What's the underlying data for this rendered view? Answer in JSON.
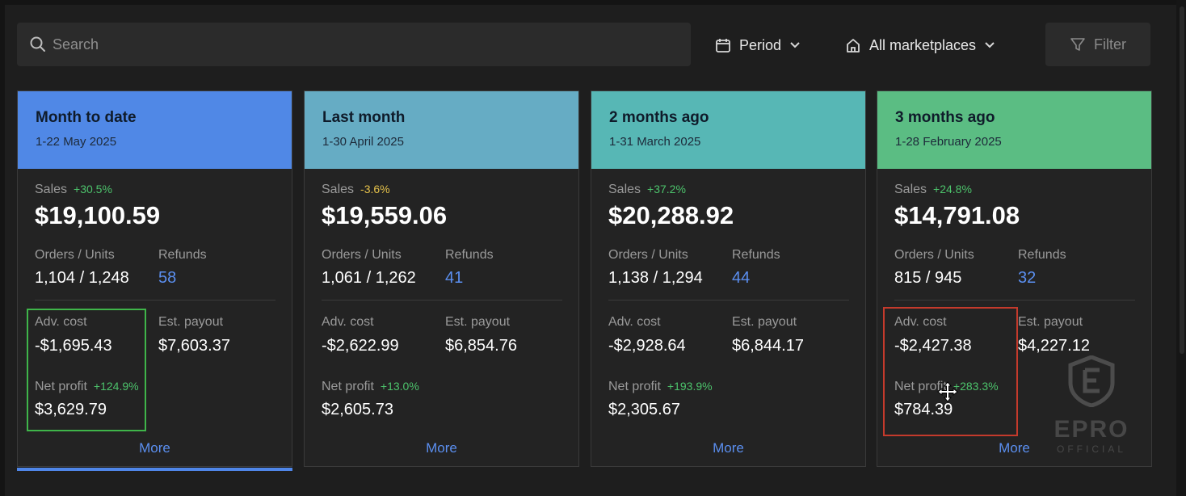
{
  "search": {
    "placeholder": "Search"
  },
  "toolbar": {
    "period_label": "Period",
    "marketplace_label": "All marketplaces",
    "filter_label": "Filter"
  },
  "colors": {
    "card0_header": "#5088e6",
    "card1_header": "#66acc4",
    "card2_header": "#57b7b5",
    "card3_header": "#5bbd83",
    "positive": "#4cc26b",
    "negative": "#e3c04a",
    "link": "#5b8ff0"
  },
  "cards": [
    {
      "title": "Month to date",
      "range": "1-22 May 2025",
      "sales_label": "Sales",
      "sales_change": "+30.5%",
      "sales": "$19,100.59",
      "orders_label": "Orders / Units",
      "orders_units": "1,104 / 1,248",
      "refunds_label": "Refunds",
      "refunds": "58",
      "adv_label": "Adv. cost",
      "adv_cost": "-$1,695.43",
      "payout_label": "Est. payout",
      "payout": "$7,603.37",
      "net_label": "Net profit",
      "net_change": "+124.9%",
      "net_profit": "$3,629.79",
      "more": "More"
    },
    {
      "title": "Last month",
      "range": "1-30 April 2025",
      "sales_label": "Sales",
      "sales_change": "-3.6%",
      "sales": "$19,559.06",
      "orders_label": "Orders / Units",
      "orders_units": "1,061 / 1,262",
      "refunds_label": "Refunds",
      "refunds": "41",
      "adv_label": "Adv. cost",
      "adv_cost": "-$2,622.99",
      "payout_label": "Est. payout",
      "payout": "$6,854.76",
      "net_label": "Net profit",
      "net_change": "+13.0%",
      "net_profit": "$2,605.73",
      "more": "More"
    },
    {
      "title": "2 months ago",
      "range": "1-31 March 2025",
      "sales_label": "Sales",
      "sales_change": "+37.2%",
      "sales": "$20,288.92",
      "orders_label": "Orders / Units",
      "orders_units": "1,138 / 1,294",
      "refunds_label": "Refunds",
      "refunds": "44",
      "adv_label": "Adv. cost",
      "adv_cost": "-$2,928.64",
      "payout_label": "Est. payout",
      "payout": "$6,844.17",
      "net_label": "Net profit",
      "net_change": "+193.9%",
      "net_profit": "$2,305.67",
      "more": "More"
    },
    {
      "title": "3 months ago",
      "range": "1-28 February 2025",
      "sales_label": "Sales",
      "sales_change": "+24.8%",
      "sales": "$14,791.08",
      "orders_label": "Orders / Units",
      "orders_units": "815 / 945",
      "refunds_label": "Refunds",
      "refunds": "32",
      "adv_label": "Adv. cost",
      "adv_cost": "-$2,427.38",
      "payout_label": "Est. payout",
      "payout": "$4,227.12",
      "net_label": "Net profit",
      "net_change": "+283.3%",
      "net_profit": "$784.39",
      "more": "More"
    }
  ],
  "watermark": {
    "text": "EPRO",
    "sub": "OFFICIAL"
  }
}
